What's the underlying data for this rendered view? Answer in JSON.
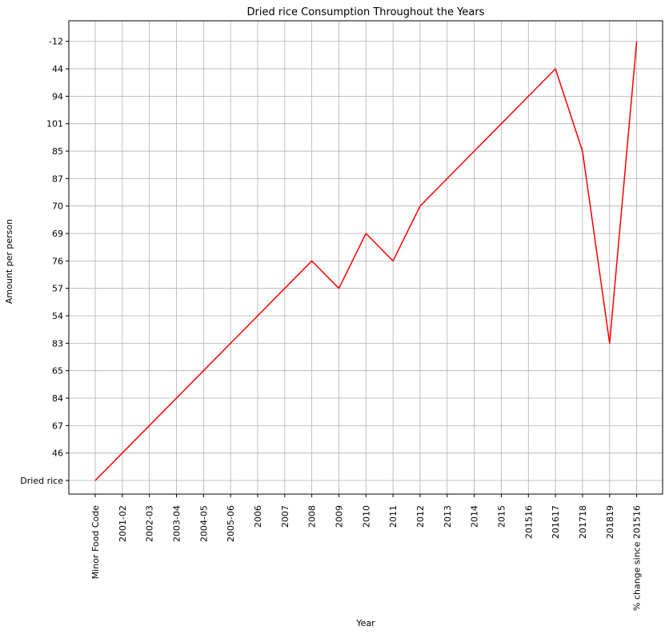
{
  "chart_data": {
    "type": "line",
    "title": "Dried rice Consumption Throughout the Years",
    "xlabel": "Year",
    "ylabel": "Amount per person",
    "grid": true,
    "categories": [
      "Minor Food Code",
      "2001-02",
      "2002-03",
      "2003-04",
      "2004-05",
      "2005-06",
      "2006",
      "2007",
      "2008",
      "2009",
      "2010",
      "2011",
      "2012",
      "2013",
      "2014",
      "2015",
      "201516",
      "201617",
      "201718",
      "201819",
      "% change since 201516"
    ],
    "y_categories": [
      "Dried rice",
      "46",
      "67",
      "84",
      "65",
      "83",
      "54",
      "57",
      "76",
      "69",
      "70",
      "87",
      "85",
      "101",
      "94",
      "44",
      "-12"
    ],
    "series": [
      {
        "values": [
          "Dried rice",
          "46",
          "67",
          "84",
          "65",
          "83",
          "54",
          "57",
          "76",
          "57",
          "69",
          "76",
          "70",
          "87",
          "85",
          "101",
          "94",
          "44",
          "85",
          "83",
          "-12"
        ],
        "color": "#ff0000"
      }
    ]
  }
}
